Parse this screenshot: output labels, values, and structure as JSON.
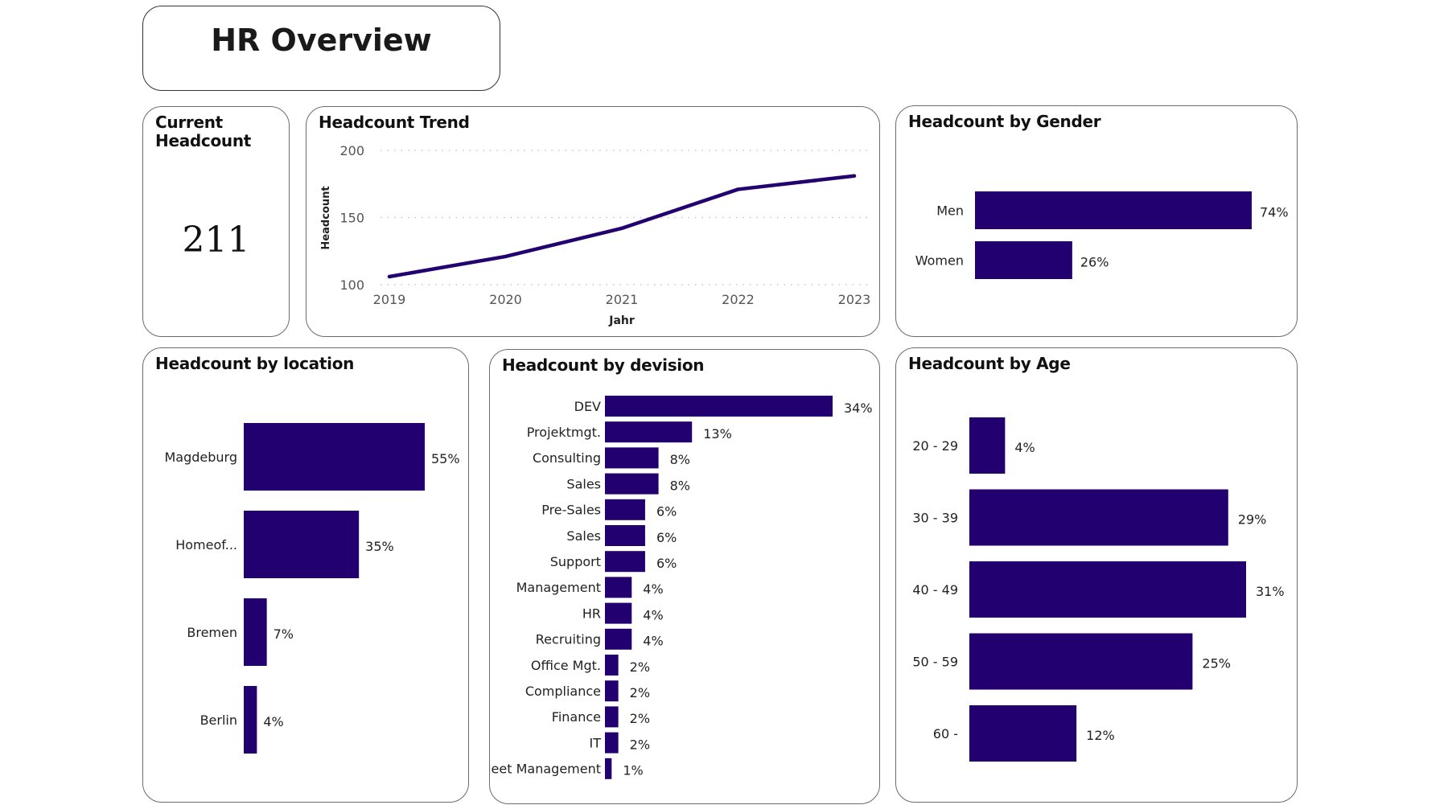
{
  "page": {
    "title": "HR Overview"
  },
  "theme": {
    "bar_color": "#22006f",
    "line_color": "#22006f",
    "grid_color": "#bdbdbd",
    "text_color": "#222222"
  },
  "kpi": {
    "title": "Current Headcount",
    "value": "211"
  },
  "chart_data": [
    {
      "id": "trend",
      "type": "line",
      "title": "Headcount Trend",
      "xlabel": "Jahr",
      "ylabel": "Headcount",
      "x": [
        "2019",
        "2020",
        "2021",
        "2022",
        "2023"
      ],
      "series": [
        {
          "name": "Headcount",
          "values": [
            106,
            121,
            142,
            171,
            181
          ]
        }
      ],
      "ylim": [
        100,
        200
      ],
      "yticks": [
        "100",
        "150",
        "200"
      ],
      "grid": true
    },
    {
      "id": "gender",
      "type": "bar",
      "orientation": "horizontal",
      "title": "Headcount by Gender",
      "categories": [
        "Men",
        "Women"
      ],
      "values": [
        74,
        26
      ],
      "labels": [
        "74%",
        "26%"
      ]
    },
    {
      "id": "location",
      "type": "bar",
      "orientation": "horizontal",
      "title": "Headcount by location",
      "categories": [
        "Magdeburg",
        "Homeof...",
        "Bremen",
        "Berlin"
      ],
      "values": [
        55,
        35,
        7,
        4
      ],
      "labels": [
        "55%",
        "35%",
        "7%",
        "4%"
      ]
    },
    {
      "id": "division",
      "type": "bar",
      "orientation": "horizontal",
      "title": "Headcount by devision",
      "categories": [
        "DEV",
        "Projektmgt.",
        "Consulting",
        "Sales",
        "Pre-Sales",
        "Sales",
        "Support",
        "Management",
        "HR",
        "Recruiting",
        "Office Mgt.",
        "Compliance",
        "Finance",
        "IT",
        "Fleet Management"
      ],
      "values": [
        34,
        13,
        8,
        8,
        6,
        6,
        6,
        4,
        4,
        4,
        2,
        2,
        2,
        2,
        1
      ],
      "labels": [
        "34%",
        "13%",
        "8%",
        "8%",
        "6%",
        "6%",
        "6%",
        "4%",
        "4%",
        "4%",
        "2%",
        "2%",
        "2%",
        "2%",
        "1%"
      ]
    },
    {
      "id": "age",
      "type": "bar",
      "orientation": "horizontal",
      "title": "Headcount by Age",
      "categories": [
        "20 - 29",
        "30 - 39",
        "40 - 49",
        "50 - 59",
        "60 -"
      ],
      "values": [
        4,
        29,
        31,
        25,
        12
      ],
      "labels": [
        "4%",
        "29%",
        "31%",
        "25%",
        "12%"
      ]
    }
  ]
}
